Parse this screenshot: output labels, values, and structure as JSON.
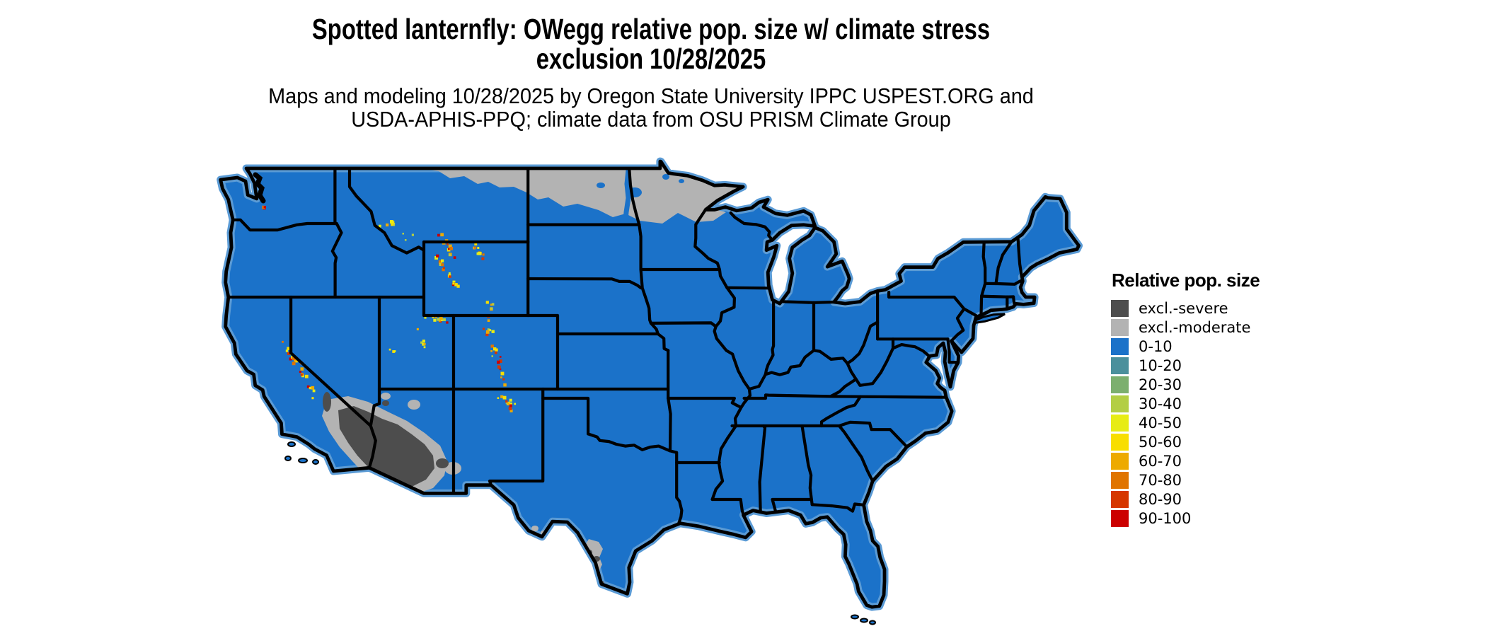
{
  "title": {
    "line1": "Spotted lanternfly: OWegg relative pop. size w/ climate stress",
    "line2": "exclusion 10/28/2025"
  },
  "subtitle": {
    "line1": "Maps and modeling 10/28/2025 by Oregon State University IPPC USPEST.ORG and",
    "line2": "USDA-APHIS-PPQ; climate data from OSU PRISM Climate Group"
  },
  "legend": {
    "title": "Relative pop. size",
    "items": [
      {
        "label": "excl.-severe",
        "color": "#4D4D4D"
      },
      {
        "label": "excl.-moderate",
        "color": "#B3B3B3"
      },
      {
        "label": "0-10",
        "color": "#1B72C9"
      },
      {
        "label": "10-20",
        "color": "#4B909C"
      },
      {
        "label": "20-30",
        "color": "#7CAF6E"
      },
      {
        "label": "30-40",
        "color": "#B3CE44"
      },
      {
        "label": "40-50",
        "color": "#E7EC15"
      },
      {
        "label": "50-60",
        "color": "#F8DE00"
      },
      {
        "label": "60-70",
        "color": "#EDAA00"
      },
      {
        "label": "70-80",
        "color": "#E07400"
      },
      {
        "label": "80-90",
        "color": "#D63700"
      },
      {
        "label": "90-100",
        "color": "#CC0000"
      }
    ]
  },
  "map": {
    "type": "choropleth-raster",
    "area": "Conterminous United States with state borders",
    "border_color": "#000000",
    "coast_halo_color": "#5B9BD5",
    "background_color": "#FFFFFF",
    "base_fill_class": "0-10",
    "regions": [
      {
        "area": "Conterminous United States — most areas",
        "class": "0-10"
      },
      {
        "area": "Northern border strip: northeast Montana, northern North Dakota, northern Minnesota, northwest Wisconsin tip",
        "class": "excl.-moderate"
      },
      {
        "area": "Sonoran / Mojave deserts: southeast California and southern-western Arizona",
        "class": "excl.-severe with excl.-moderate fringe"
      },
      {
        "area": "South Texas along the Rio Grande (Laredo area)",
        "class": "excl.-moderate with excl.-severe spots"
      },
      {
        "area": "High mountain ranges: Sierra Nevada, W Montana spots, Absaroka, Bighorn, Wind River, Uinta, Wasatch, Colorado Front Range, San Juan Mountains",
        "class": "speckled higher values (30-100)"
      }
    ]
  }
}
